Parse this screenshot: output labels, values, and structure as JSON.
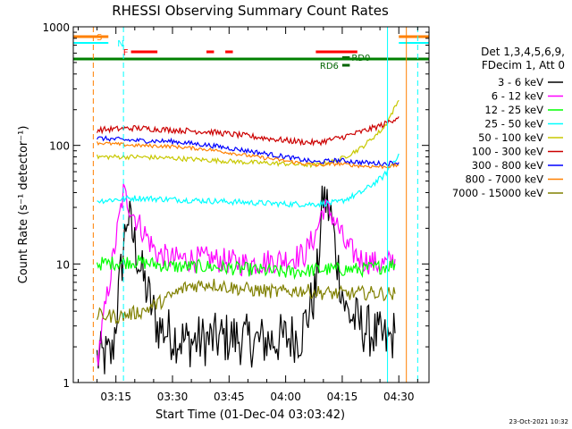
{
  "chart_data": {
    "type": "line",
    "title": "RHESSI Observing Summary Count Rates",
    "xlabel": "Start Time (01-Dec-04 03:03:42)",
    "ylabel": "Count Rate (s⁻¹ detector⁻¹)",
    "yscale": "log",
    "ylim": [
      1,
      1000
    ],
    "xlim": [
      "03:03:42",
      "04:38:00"
    ],
    "x_ticks": [
      "03:15",
      "03:30",
      "03:45",
      "04:00",
      "04:15",
      "04:30"
    ],
    "y_ticks": [
      "1",
      "10",
      "100",
      "1000"
    ],
    "grid": false,
    "legend_title": [
      "Det 1,3,4,5,6,9,",
      "FDecim 1, Att 0"
    ],
    "series": [
      {
        "name": "3 - 6 keV",
        "color": "#000000",
        "x": [
          "03:10",
          "03:14",
          "03:18",
          "03:22",
          "03:26",
          "03:30",
          "03:34",
          "03:40",
          "03:46",
          "03:52",
          "03:58",
          "04:04",
          "04:08",
          "04:10",
          "04:12",
          "04:14",
          "04:16",
          "04:20",
          "04:24",
          "04:27",
          "04:29"
        ],
        "values": [
          1.6,
          1.7,
          27,
          8,
          3,
          2.5,
          2.2,
          2.3,
          2.4,
          2.2,
          2.3,
          2.5,
          6,
          38,
          25,
          9,
          4,
          3,
          2.5,
          2.2,
          2.6
        ]
      },
      {
        "name": "6 - 12 keV",
        "color": "#ff00ff",
        "x": [
          "03:10",
          "03:14",
          "03:17",
          "03:20",
          "03:26",
          "03:30",
          "03:40",
          "03:50",
          "04:00",
          "04:05",
          "04:08",
          "04:10",
          "04:12",
          "04:14",
          "04:16",
          "04:20",
          "04:24",
          "04:27",
          "04:29"
        ],
        "values": [
          1.5,
          10,
          40,
          25,
          12,
          11,
          11,
          10,
          11,
          12,
          18,
          30,
          27,
          20,
          14,
          11,
          10,
          10,
          11
        ]
      },
      {
        "name": "12 - 25 keV",
        "color": "#00ff00",
        "x": [
          "03:10",
          "03:20",
          "03:30",
          "03:40",
          "03:50",
          "04:00",
          "04:10",
          "04:16",
          "04:20",
          "04:26",
          "04:29"
        ],
        "values": [
          10,
          10.5,
          9.5,
          9.5,
          9,
          8.5,
          9,
          9,
          9,
          9.5,
          10
        ]
      },
      {
        "name": "25 - 50 keV",
        "color": "#00ffff",
        "x": [
          "03:10",
          "03:20",
          "03:30",
          "03:40",
          "03:50",
          "04:00",
          "04:08",
          "04:14",
          "04:20",
          "04:26",
          "04:30"
        ],
        "values": [
          34,
          36,
          35,
          34,
          33,
          32,
          32,
          33,
          40,
          55,
          85
        ]
      },
      {
        "name": "50 - 100 keV",
        "color": "#c8c800",
        "x": [
          "03:10",
          "03:20",
          "03:30",
          "03:40",
          "03:50",
          "04:00",
          "04:08",
          "04:14",
          "04:20",
          "04:26",
          "04:30"
        ],
        "values": [
          80,
          80,
          78,
          75,
          72,
          70,
          68,
          75,
          95,
          140,
          240
        ]
      },
      {
        "name": "100 - 300 keV",
        "color": "#cc0000",
        "x": [
          "03:10",
          "03:20",
          "03:30",
          "03:40",
          "03:50",
          "04:00",
          "04:08",
          "04:14",
          "04:20",
          "04:26",
          "04:30"
        ],
        "values": [
          135,
          140,
          135,
          130,
          120,
          110,
          105,
          115,
          130,
          150,
          175
        ]
      },
      {
        "name": "300 - 800 keV",
        "color": "#0000ff",
        "x": [
          "03:10",
          "03:20",
          "03:30",
          "03:40",
          "03:50",
          "04:00",
          "04:08",
          "04:14",
          "04:20",
          "04:26",
          "04:30"
        ],
        "values": [
          115,
          110,
          108,
          100,
          90,
          80,
          72,
          75,
          72,
          70,
          72
        ]
      },
      {
        "name": "800 - 7000 keV",
        "color": "#ff8000",
        "x": [
          "03:10",
          "03:20",
          "03:30",
          "03:40",
          "03:50",
          "04:00",
          "04:08",
          "04:14",
          "04:20",
          "04:26",
          "04:30"
        ],
        "values": [
          105,
          100,
          98,
          92,
          82,
          74,
          68,
          70,
          67,
          66,
          68
        ]
      },
      {
        "name": "7000 - 15000 keV",
        "color": "#808000",
        "x": [
          "03:10",
          "03:16",
          "03:22",
          "03:28",
          "03:34",
          "03:40",
          "03:46",
          "03:52",
          "03:58",
          "04:04",
          "04:10",
          "04:16",
          "04:22",
          "04:29"
        ],
        "values": [
          3.7,
          3.6,
          4,
          5,
          6.5,
          6.8,
          6.3,
          6,
          5.8,
          6,
          5.7,
          5.6,
          5.7,
          5.6
        ]
      }
    ],
    "flags": [
      {
        "label": "S",
        "color": "#ff8000",
        "segments": [
          [
            "03:03:42",
            "03:13"
          ],
          [
            "04:30",
            "04:38"
          ]
        ]
      },
      {
        "label": "N",
        "color": "#00ffff",
        "segments": [
          [
            "03:03:42",
            "03:13"
          ],
          [
            "04:30",
            "04:38"
          ]
        ]
      },
      {
        "label": "F",
        "color": "#ff0000",
        "segments": [
          [
            "03:19",
            "03:26"
          ],
          [
            "03:39",
            "03:41"
          ],
          [
            "03:44",
            "03:46"
          ],
          [
            "04:08",
            "04:19"
          ]
        ]
      },
      {
        "label": "RD0",
        "color": "#006400",
        "segments": [
          [
            "04:15",
            "04:17"
          ]
        ]
      },
      {
        "label": "RD6",
        "color": "#006400",
        "segments": [
          [
            "04:15",
            "04:17"
          ]
        ]
      }
    ],
    "attenuator_line": {
      "color": "#008000",
      "from": "03:03:42",
      "to": "04:38:00"
    },
    "vertical_markers": [
      {
        "x": "03:09",
        "color": "#ff8000"
      },
      {
        "x": "03:17",
        "color": "#00ffff"
      },
      {
        "x": "04:27",
        "color": "#00ffff"
      },
      {
        "x": "04:32",
        "color": "#ff8000"
      },
      {
        "x": "04:35",
        "color": "#00ffff"
      }
    ]
  },
  "footer_timestamp": "23-Oct-2021 10:32"
}
